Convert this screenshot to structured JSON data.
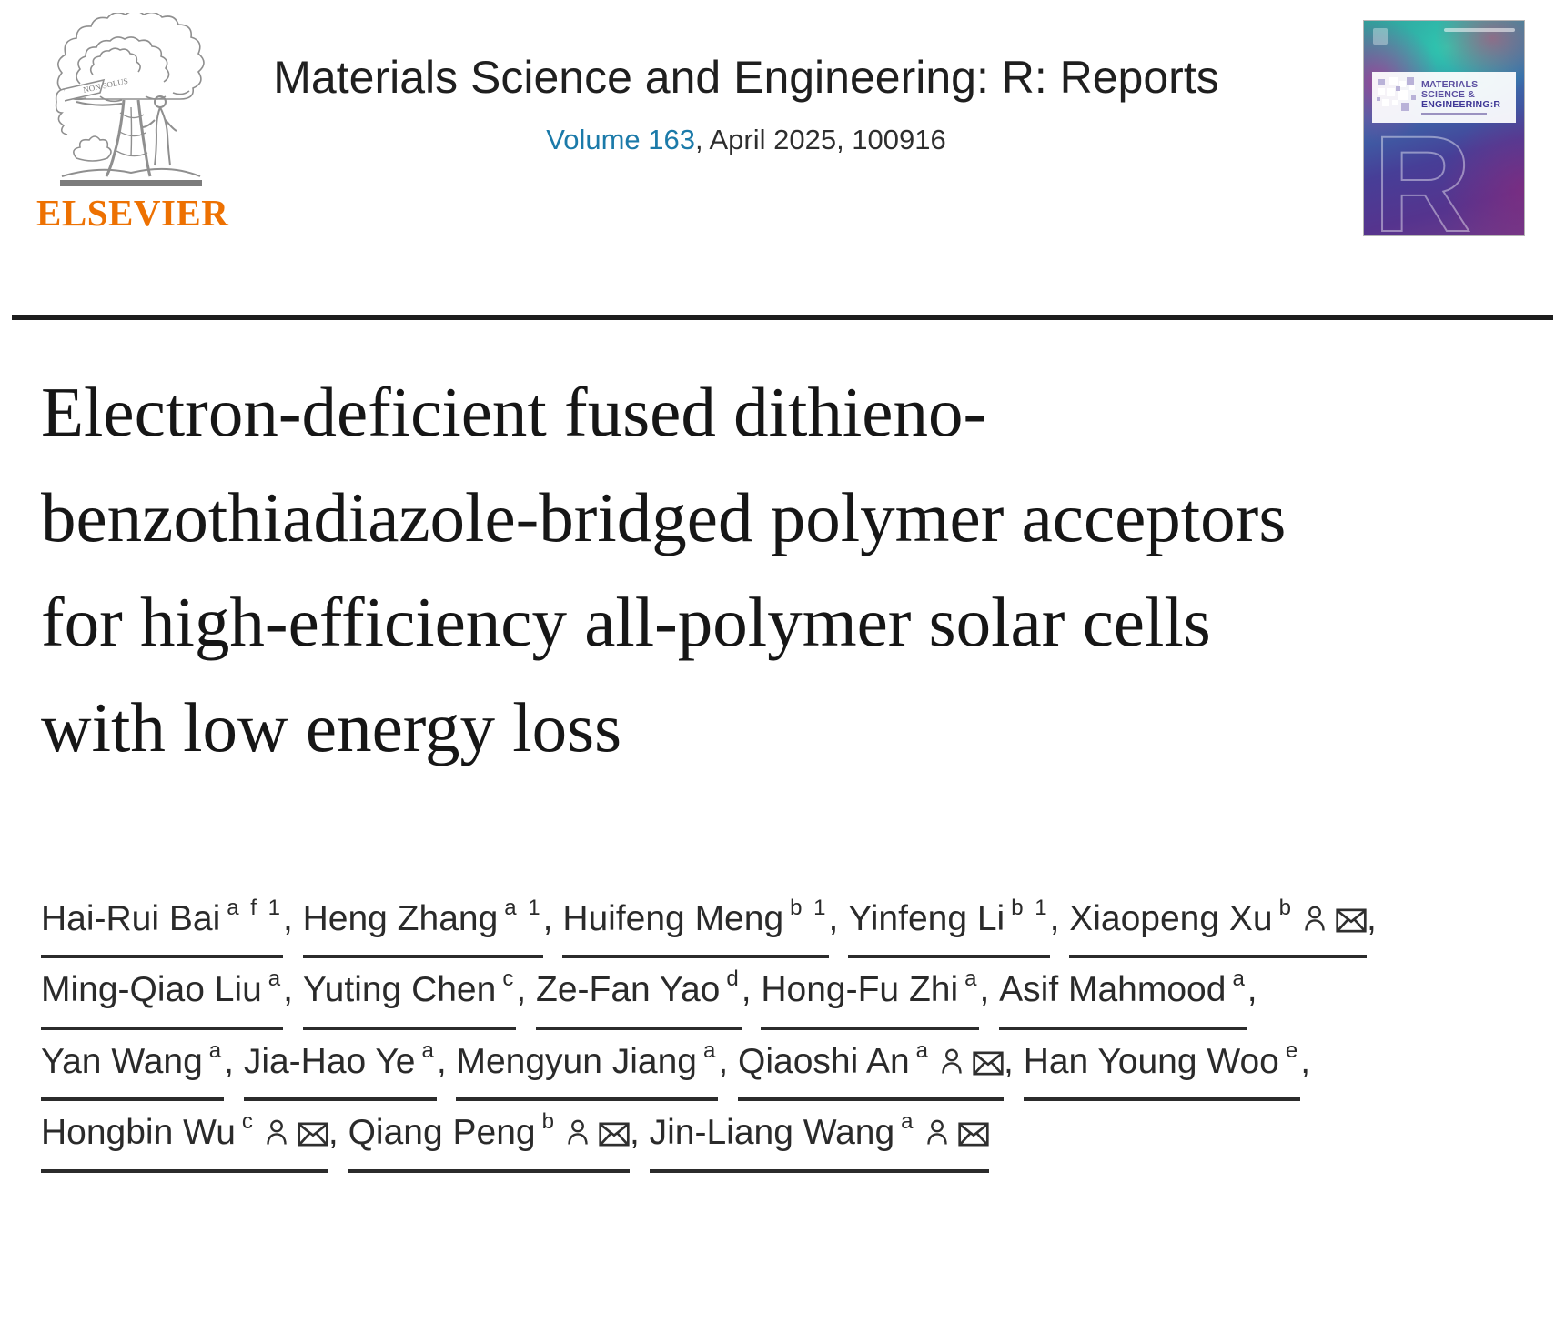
{
  "header": {
    "publisher": "ELSEVIER",
    "journal_title": "Materials Science and Engineering: R: Reports",
    "volume_link": "Volume 163",
    "issue_info": ", April 2025, 100916",
    "cover_banner": {
      "line1": "MATERIALS",
      "line2": "SCIENCE &",
      "line3": "ENGINEERING:R"
    },
    "colors": {
      "elsevier_orange": "#ED7102",
      "link_blue": "#1B7AA9",
      "divider": "#1d1d1d",
      "text": "#212121"
    }
  },
  "article": {
    "title": "Electron-deficient fused dithieno-benzothiadiazole-bridged polymer acceptors for high-efficiency all-polymer solar cells with low energy loss"
  },
  "authors_separator": ", ",
  "authors": [
    {
      "name": "Hai-Rui Bai",
      "sup": "a f 1",
      "person": false,
      "email": false
    },
    {
      "name": "Heng Zhang",
      "sup": "a 1",
      "person": false,
      "email": false
    },
    {
      "name": "Huifeng Meng",
      "sup": "b 1",
      "person": false,
      "email": false
    },
    {
      "name": "Yinfeng Li",
      "sup": "b 1",
      "person": false,
      "email": false
    },
    {
      "name": "Xiaopeng Xu",
      "sup": "b",
      "person": true,
      "email": true
    },
    {
      "name": "Ming-Qiao Liu",
      "sup": "a",
      "person": false,
      "email": false
    },
    {
      "name": "Yuting Chen",
      "sup": "c",
      "person": false,
      "email": false
    },
    {
      "name": "Ze-Fan Yao",
      "sup": "d",
      "person": false,
      "email": false
    },
    {
      "name": "Hong-Fu Zhi",
      "sup": "a",
      "person": false,
      "email": false
    },
    {
      "name": "Asif Mahmood",
      "sup": "a",
      "person": false,
      "email": false
    },
    {
      "name": "Yan Wang",
      "sup": "a",
      "person": false,
      "email": false
    },
    {
      "name": "Jia-Hao Ye",
      "sup": "a",
      "person": false,
      "email": false
    },
    {
      "name": "Mengyun Jiang",
      "sup": "a",
      "person": false,
      "email": false
    },
    {
      "name": "Qiaoshi An",
      "sup": "a",
      "person": true,
      "email": true
    },
    {
      "name": "Han Young Woo",
      "sup": "e",
      "person": false,
      "email": false
    },
    {
      "name": "Hongbin Wu",
      "sup": "c",
      "person": true,
      "email": true
    },
    {
      "name": "Qiang Peng",
      "sup": "b",
      "person": true,
      "email": true
    },
    {
      "name": "Jin-Liang Wang",
      "sup": "a",
      "person": true,
      "email": true
    }
  ]
}
